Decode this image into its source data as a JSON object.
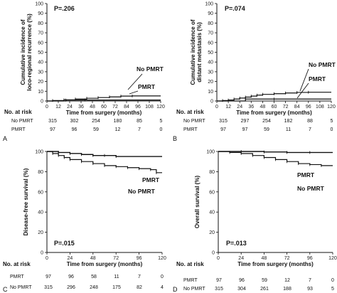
{
  "chart_data": [
    {
      "panel_label": "A",
      "type": "line",
      "p_value": "P=.206",
      "xlabel": "Time from surgery (months)",
      "ylabel": [
        "Cumulative incidence of",
        "loco-regional recurrence (%)"
      ],
      "xlim": [
        0,
        120
      ],
      "ylim": [
        0,
        100
      ],
      "xticks": [
        "0",
        "12",
        "24",
        "36",
        "48",
        "60",
        "72",
        "84",
        "96",
        "108",
        "120"
      ],
      "yticks": [
        "0",
        "10",
        "20",
        "30",
        "40",
        "50",
        "60",
        "70",
        "80",
        "90",
        "100"
      ],
      "series": [
        {
          "name": "No PMRT",
          "x": [
            0,
            6,
            18,
            30,
            42,
            54,
            66,
            78,
            90,
            120
          ],
          "y": [
            0,
            0.5,
            1.2,
            2,
            2.8,
            3.5,
            4.2,
            5,
            5.2,
            5.2
          ]
        },
        {
          "name": "PMRT",
          "x": [
            0,
            20,
            40,
            120
          ],
          "y": [
            0,
            1,
            1,
            1
          ]
        }
      ],
      "legend_labels": [
        "No PMRT",
        "PMRT"
      ],
      "risk_table": {
        "title": "No. at risk",
        "rows": [
          {
            "group": "No PMRT",
            "values": [
              "315",
              "302",
              "254",
              "180",
              "85",
              "5"
            ]
          },
          {
            "group": "PMRT",
            "values": [
              "97",
              "96",
              "59",
              "12",
              "7",
              "0"
            ]
          }
        ]
      }
    },
    {
      "panel_label": "B",
      "type": "line",
      "p_value": "P=.074",
      "xlabel": "Time from surgery (months)",
      "ylabel": [
        "Cumulative incidence of",
        "distant metastasis (%)"
      ],
      "xlim": [
        0,
        120
      ],
      "ylim": [
        0,
        100
      ],
      "xticks": [
        "0",
        "12",
        "24",
        "36",
        "48",
        "60",
        "72",
        "84",
        "96",
        "108",
        "120"
      ],
      "yticks": [
        "0",
        "10",
        "20",
        "30",
        "40",
        "50",
        "60",
        "70",
        "80",
        "90",
        "100"
      ],
      "series": [
        {
          "name": "No PMRT",
          "x": [
            0,
            6,
            12,
            18,
            24,
            30,
            36,
            42,
            48,
            60,
            72,
            84,
            96,
            120
          ],
          "y": [
            0,
            0.5,
            1,
            2,
            3,
            4,
            5,
            6,
            6.8,
            7.5,
            8.2,
            8.8,
            9,
            9
          ]
        },
        {
          "name": "PMRT",
          "x": [
            0,
            30,
            60,
            120
          ],
          "y": [
            0,
            2,
            2,
            2
          ]
        }
      ],
      "legend_labels": [
        "No PMRT",
        "PMRT"
      ],
      "risk_table": {
        "title": "No. at risk",
        "rows": [
          {
            "group": "No PMRT",
            "values": [
              "315",
              "297",
              "254",
              "182",
              "88",
              "5"
            ]
          },
          {
            "group": "PMRT",
            "values": [
              "97",
              "97",
              "59",
              "11",
              "7",
              "0"
            ]
          }
        ]
      }
    },
    {
      "panel_label": "C",
      "type": "line",
      "p_value": "P=.015",
      "xlabel": "Time from surgery (months)",
      "ylabel": [
        "Disease-free survival (%)"
      ],
      "xlim": [
        0,
        120
      ],
      "ylim": [
        0,
        100
      ],
      "xticks": [
        "0",
        "24",
        "48",
        "72",
        "96",
        "120"
      ],
      "yticks": [
        "0",
        "20",
        "40",
        "60",
        "80",
        "100"
      ],
      "series": [
        {
          "name": "PMRT",
          "x": [
            0,
            12,
            24,
            36,
            48,
            60,
            72,
            120
          ],
          "y": [
            100,
            99,
            98,
            97,
            96,
            96,
            95,
            95
          ]
        },
        {
          "name": "No PMRT",
          "x": [
            0,
            6,
            12,
            18,
            24,
            36,
            48,
            60,
            72,
            84,
            96,
            108,
            114,
            120
          ],
          "y": [
            100,
            98,
            96,
            94,
            92,
            90,
            88,
            86,
            85,
            84,
            83,
            82,
            79,
            79
          ]
        }
      ],
      "legend_labels": [
        "PMRT",
        "No PMRT"
      ],
      "risk_table": {
        "title": "No. at risk",
        "rows": [
          {
            "group": "PMRT",
            "values": [
              "97",
              "96",
              "58",
              "11",
              "7",
              "0"
            ]
          },
          {
            "group": "No PMRT",
            "values": [
              "315",
              "296",
              "248",
              "175",
              "82",
              "4"
            ]
          }
        ]
      }
    },
    {
      "panel_label": "D",
      "type": "line",
      "p_value": "P=.013",
      "xlabel": "Time from surgery (months)",
      "ylabel": [
        "Overall survival (%)"
      ],
      "xlim": [
        0,
        120
      ],
      "ylim": [
        0,
        100
      ],
      "xticks": [
        "0",
        "24",
        "48",
        "72",
        "96",
        "120"
      ],
      "yticks": [
        "0",
        "20",
        "40",
        "60",
        "80",
        "100"
      ],
      "series": [
        {
          "name": "PMRT",
          "x": [
            0,
            24,
            48,
            72,
            96,
            120
          ],
          "y": [
            100,
            100,
            99.5,
            99,
            99,
            99
          ]
        },
        {
          "name": "No PMRT",
          "x": [
            0,
            12,
            24,
            36,
            48,
            60,
            72,
            84,
            96,
            108,
            120
          ],
          "y": [
            100,
            99,
            98,
            96,
            94,
            92,
            90,
            88,
            87,
            86,
            86
          ]
        }
      ],
      "legend_labels": [
        "PMRT",
        "No PMRT"
      ],
      "risk_table": {
        "title": "No. at risk",
        "rows": [
          {
            "group": "PMRT",
            "values": [
              "97",
              "96",
              "59",
              "12",
              "7",
              "0"
            ]
          },
          {
            "group": "No PMRT",
            "values": [
              "315",
              "304",
              "261",
              "188",
              "93",
              "5"
            ]
          }
        ]
      }
    }
  ]
}
